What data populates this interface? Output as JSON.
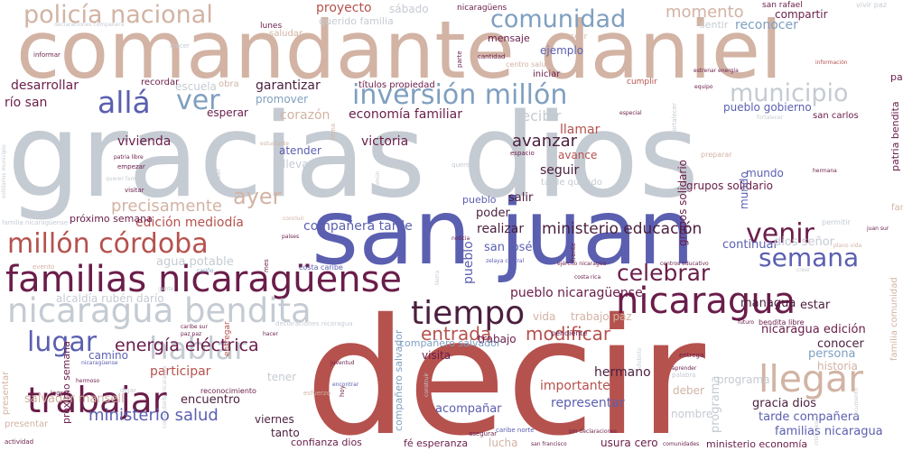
{
  "palette": {
    "brick": "#b5524e",
    "maroon": "#6a1d4a",
    "indigo": "#5b5fb0",
    "steel": "#7f9fc0",
    "gray": "#c5cbd2",
    "tan": "#d2b3a4",
    "dark": "#4b1f3e"
  },
  "words": [
    {
      "text": "decir",
      "color": "brick"
    },
    {
      "text": "gracias dios",
      "color": "gray"
    },
    {
      "text": "comandante daniel",
      "color": "tan"
    },
    {
      "text": "san juan",
      "color": "indigo"
    },
    {
      "text": "familias nicaragüense",
      "color": "maroon"
    },
    {
      "text": "nicaragua bendita",
      "color": "gray"
    },
    {
      "text": "millón córdoba",
      "color": "brick"
    },
    {
      "text": "policía nacional",
      "color": "tan"
    },
    {
      "text": "trabajar",
      "color": "maroon"
    },
    {
      "text": "nicaragua",
      "color": "maroon"
    },
    {
      "text": "llegar",
      "color": "tan"
    },
    {
      "text": "tiempo",
      "color": "dark"
    },
    {
      "text": "inversión millón",
      "color": "steel"
    },
    {
      "text": "comunidad",
      "color": "steel"
    },
    {
      "text": "municipio",
      "color": "gray"
    },
    {
      "text": "hablar",
      "color": "gray"
    },
    {
      "text": "lugar",
      "color": "indigo"
    },
    {
      "text": "venir",
      "color": "maroon"
    },
    {
      "text": "semana",
      "color": "indigo"
    },
    {
      "text": "celebrar",
      "color": "maroon"
    },
    {
      "text": "allá",
      "color": "indigo"
    },
    {
      "text": "ver",
      "color": "steel"
    },
    {
      "text": "ayer",
      "color": "tan"
    },
    {
      "text": "energía eléctrica",
      "color": "maroon"
    },
    {
      "text": "entrada",
      "color": "brick"
    },
    {
      "text": "modificar",
      "color": "brick"
    },
    {
      "text": "precisamente",
      "color": "tan"
    },
    {
      "text": "ministerio educación",
      "color": "dark"
    },
    {
      "text": "ministerio salud",
      "color": "indigo"
    },
    {
      "text": "momento",
      "color": "tan"
    },
    {
      "text": "avanzar",
      "color": "dark"
    },
    {
      "text": "pueblo nicaragüense",
      "color": "maroon"
    },
    {
      "text": "proyecto",
      "color": "brick"
    },
    {
      "text": "garantizar",
      "color": "dark"
    },
    {
      "text": "desarrollar",
      "color": "maroon"
    },
    {
      "text": "río san",
      "color": "maroon"
    },
    {
      "text": "compañera tarde",
      "color": "indigo"
    },
    {
      "text": "edición mediodía",
      "color": "brick"
    },
    {
      "text": "economía familiar",
      "color": "maroon"
    },
    {
      "text": "corazón",
      "color": "tan"
    },
    {
      "text": "recibir",
      "color": "gray"
    },
    {
      "text": "vivienda",
      "color": "maroon"
    },
    {
      "text": "victoria",
      "color": "maroon"
    },
    {
      "text": "llamar",
      "color": "brick"
    },
    {
      "text": "avance",
      "color": "brick"
    },
    {
      "text": "seguir",
      "color": "dark"
    },
    {
      "text": "salir",
      "color": "dark"
    },
    {
      "text": "poder",
      "color": "dark"
    },
    {
      "text": "realizar",
      "color": "dark"
    },
    {
      "text": "san josé",
      "color": "indigo"
    },
    {
      "text": "agua potable",
      "color": "gray"
    },
    {
      "text": "alcaldía rubén darío",
      "color": "gray"
    },
    {
      "text": "continuar",
      "color": "indigo"
    },
    {
      "text": "dios señor",
      "color": "gray"
    },
    {
      "text": "managua",
      "color": "dark"
    },
    {
      "text": "estar",
      "color": "dark"
    },
    {
      "text": "nicaragua edición",
      "color": "maroon"
    },
    {
      "text": "conocer",
      "color": "dark"
    },
    {
      "text": "persona",
      "color": "steel"
    },
    {
      "text": "historia",
      "color": "tan"
    },
    {
      "text": "participar",
      "color": "brick"
    },
    {
      "text": "hermano",
      "color": "dark"
    },
    {
      "text": "importante",
      "color": "brick"
    },
    {
      "text": "representar",
      "color": "indigo"
    },
    {
      "text": "acompañar",
      "color": "indigo"
    },
    {
      "text": "deber",
      "color": "tan"
    },
    {
      "text": "nombre",
      "color": "gray"
    },
    {
      "text": "gracia dios",
      "color": "dark"
    },
    {
      "text": "tarde compañera",
      "color": "indigo"
    },
    {
      "text": "familias nicaragua",
      "color": "indigo"
    },
    {
      "text": "salvador mansell",
      "color": "tan"
    },
    {
      "text": "encuentro",
      "color": "dark"
    },
    {
      "text": "viernes",
      "color": "dark"
    },
    {
      "text": "tanto",
      "color": "dark"
    },
    {
      "text": "confianza dios",
      "color": "maroon"
    },
    {
      "text": "fé esperanza",
      "color": "maroon"
    },
    {
      "text": "lucha",
      "color": "tan"
    },
    {
      "text": "usura cero",
      "color": "maroon"
    },
    {
      "text": "ministerio economía",
      "color": "maroon"
    },
    {
      "text": "vida",
      "color": "tan"
    },
    {
      "text": "trabajo paz",
      "color": "tan"
    },
    {
      "text": "visita",
      "color": "maroon"
    },
    {
      "text": "trabajo",
      "color": "maroon"
    },
    {
      "text": "camino",
      "color": "indigo"
    },
    {
      "text": "tener",
      "color": "gray"
    },
    {
      "text": "atender",
      "color": "indigo"
    },
    {
      "text": "llevar",
      "color": "gray"
    },
    {
      "text": "esperar",
      "color": "maroon"
    },
    {
      "text": "promover",
      "color": "steel"
    },
    {
      "text": "escuela",
      "color": "gray"
    },
    {
      "text": "obra",
      "color": "tan"
    },
    {
      "text": "recordar",
      "color": "maroon"
    },
    {
      "text": "saludar",
      "color": "tan"
    },
    {
      "text": "querido familia",
      "color": "gray"
    },
    {
      "text": "sábado",
      "color": "gray"
    },
    {
      "text": "nicaragüens",
      "color": "maroon"
    },
    {
      "text": "lunes",
      "color": "maroon"
    },
    {
      "text": "títulos propiedad",
      "color": "maroon"
    },
    {
      "text": "ejemplo",
      "color": "indigo"
    },
    {
      "text": "iniciar",
      "color": "maroon"
    },
    {
      "text": "buscar",
      "color": "tan"
    },
    {
      "text": "cumplir",
      "color": "brick"
    },
    {
      "text": "san rafael",
      "color": "maroon"
    },
    {
      "text": "compartir",
      "color": "maroon"
    },
    {
      "text": "reconocer",
      "color": "steel"
    },
    {
      "text": "sentir",
      "color": "gray"
    },
    {
      "text": "pueblo gobierno",
      "color": "indigo"
    },
    {
      "text": "san carlos",
      "color": "maroon"
    },
    {
      "text": "mundo",
      "color": "indigo"
    },
    {
      "text": "pueblo",
      "color": "indigo"
    },
    {
      "text": "grupos solidario",
      "color": "maroon"
    },
    {
      "text": "patria bendita",
      "color": "maroon"
    },
    {
      "text": "familia comunidad",
      "color": "tan"
    },
    {
      "text": "próximo semana",
      "color": "maroon"
    },
    {
      "text": "compañero salvador",
      "color": "steel"
    },
    {
      "text": "programa",
      "color": "gray"
    },
    {
      "text": "tarde querido",
      "color": "gray"
    },
    {
      "text": "mensaje",
      "color": "maroon"
    },
    {
      "text": "declaraciones compañera",
      "color": "gray"
    },
    {
      "text": "informar",
      "color": "maroon"
    },
    {
      "text": "crecer",
      "color": "gray"
    },
    {
      "text": "vivir paz",
      "color": "gray"
    },
    {
      "text": "centro salud",
      "color": "tan"
    },
    {
      "text": "cantidad",
      "color": "maroon"
    },
    {
      "text": "equipo",
      "color": "maroon"
    },
    {
      "text": "especial",
      "color": "maroon"
    },
    {
      "text": "estrenar energía",
      "color": "maroon"
    },
    {
      "text": "información",
      "color": "brick"
    },
    {
      "text": "fortalecer",
      "color": "gray"
    },
    {
      "text": "preparar",
      "color": "tan"
    },
    {
      "text": "hermana",
      "color": "maroon"
    },
    {
      "text": "permitir",
      "color": "gray"
    },
    {
      "text": "juan sur",
      "color": "maroon"
    },
    {
      "text": "estudiante",
      "color": "tan"
    },
    {
      "text": "espacio",
      "color": "maroon"
    },
    {
      "text": "noticia",
      "color": "maroon"
    },
    {
      "text": "patria libre",
      "color": "maroon"
    },
    {
      "text": "empezar",
      "color": "maroon"
    },
    {
      "text": "querer familia",
      "color": "gray"
    },
    {
      "text": "visitar",
      "color": "maroon"
    },
    {
      "text": "querer",
      "color": "gray"
    },
    {
      "text": "familia nicaragüense",
      "color": "gray"
    },
    {
      "text": "evento",
      "color": "tan"
    },
    {
      "text": "cariño",
      "color": "steel"
    },
    {
      "text": "concluir",
      "color": "tan"
    },
    {
      "text": "países",
      "color": "maroon"
    },
    {
      "text": "costa caribe",
      "color": "indigo"
    },
    {
      "text": "zelaya central",
      "color": "indigo"
    },
    {
      "text": "ejército nicaragua",
      "color": "maroon"
    },
    {
      "text": "costa rica",
      "color": "maroon"
    },
    {
      "text": "centros educativo",
      "color": "maroon"
    },
    {
      "text": "plano vida",
      "color": "tan"
    },
    {
      "text": "creer",
      "color": "gray"
    },
    {
      "text": "futuro",
      "color": "maroon"
    },
    {
      "text": "bendita libre",
      "color": "maroon"
    },
    {
      "text": "gente",
      "color": "gray"
    },
    {
      "text": "caribe sur",
      "color": "maroon"
    },
    {
      "text": "paz paz",
      "color": "maroon"
    },
    {
      "text": "hacer",
      "color": "maroon"
    },
    {
      "text": "declaraciones nicaragua",
      "color": "gray"
    },
    {
      "text": "juventud",
      "color": "maroon"
    },
    {
      "text": "encontrar",
      "color": "indigo"
    },
    {
      "text": "aprender",
      "color": "maroon"
    },
    {
      "text": "palabra",
      "color": "gray"
    },
    {
      "text": "entrega",
      "color": "maroon"
    },
    {
      "text": "hermoso",
      "color": "maroon"
    },
    {
      "text": "reconocimiento",
      "color": "maroon"
    },
    {
      "text": "lograr",
      "color": "maroon"
    },
    {
      "text": "presentar",
      "color": "tan"
    },
    {
      "text": "actividad",
      "color": "maroon"
    },
    {
      "text": "mano dios",
      "color": "brick"
    },
    {
      "text": "caribe norte",
      "color": "indigo"
    },
    {
      "text": "pm declaraciones",
      "color": "maroon"
    },
    {
      "text": "asegurar",
      "color": "maroon"
    },
    {
      "text": "san francisco",
      "color": "maroon"
    },
    {
      "text": "comunidades",
      "color": "maroon"
    },
    {
      "text": "pendiente",
      "color": "maroon"
    },
    {
      "text": "dejar",
      "color": "gray"
    },
    {
      "text": "esfuerzo",
      "color": "tan"
    },
    {
      "text": "nicaragüense",
      "color": "indigo"
    },
    {
      "text": "solidarios municipio",
      "color": "gray"
    },
    {
      "text": "entregar",
      "color": "brick"
    },
    {
      "text": "comandante nicaragua",
      "color": "gray"
    },
    {
      "text": "mes",
      "color": "maroon"
    },
    {
      "text": "construir",
      "color": "gray"
    },
    {
      "text": "frente",
      "color": "maroon"
    },
    {
      "text": "dar",
      "color": "gray"
    },
    {
      "text": "común",
      "color": "gray"
    },
    {
      "text": "tema",
      "color": "tan"
    },
    {
      "text": "hoy",
      "color": "maroon"
    },
    {
      "text": "parte",
      "color": "maroon"
    },
    {
      "text": "tierra",
      "color": "gray"
    },
    {
      "text": "distinto",
      "color": "gray"
    },
    {
      "text": "documento",
      "color": "gray"
    },
    {
      "text": "cristo jesús",
      "color": "gray"
    }
  ]
}
